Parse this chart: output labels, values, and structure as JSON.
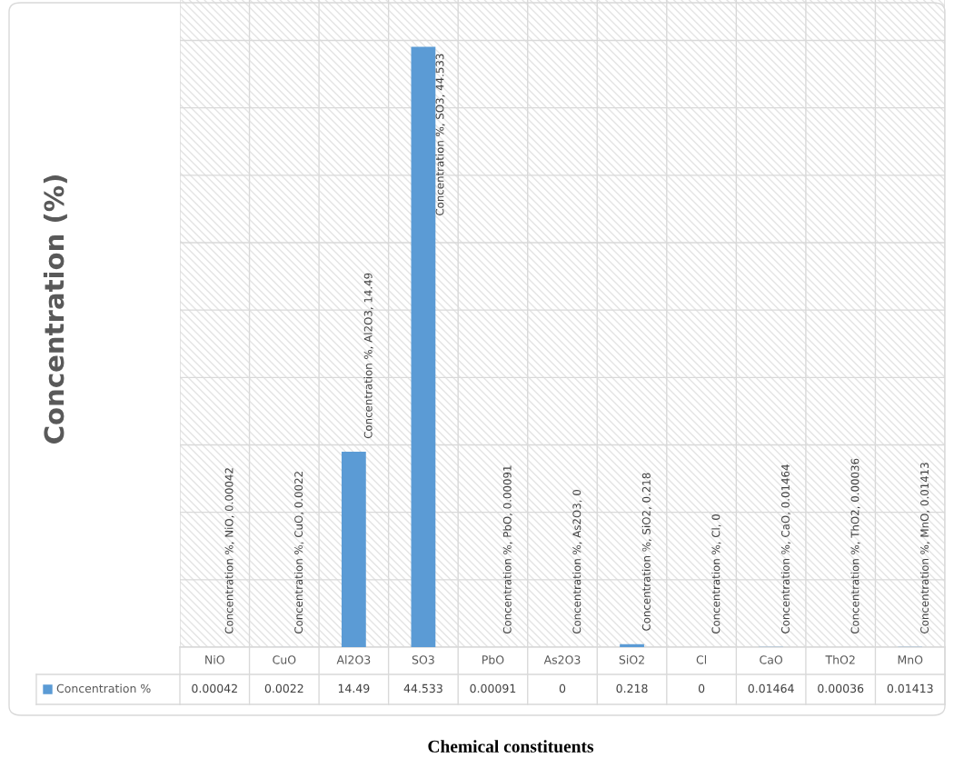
{
  "chart_data": {
    "type": "bar",
    "ylabel": "Concentration (%)",
    "xlabel": "Chemical constituents",
    "categories": [
      "NiO",
      "CuO",
      "Al2O3",
      "SO3",
      "PbO",
      "As2O3",
      "SiO2",
      "Cl",
      "CaO",
      "ThO2",
      "MnO"
    ],
    "series": [
      {
        "name": "Concentration %",
        "color": "#5b9bd5",
        "values": [
          0.00042,
          0.0022,
          14.49,
          44.533,
          0.00091,
          0,
          0.218,
          0,
          0.01464,
          0.00036,
          0.01413
        ]
      }
    ],
    "annotations": [
      {
        "text": "Concentration %, NiO, 0.00042",
        "x": "NiO",
        "y": 0.00042
      },
      {
        "text": "Concentration %, CuO, 0.0022",
        "x": "CuO",
        "y": 0.0022
      },
      {
        "text": "Concentration %, Al2O3, 14.49",
        "x": "Al2O3",
        "y": 14.49
      },
      {
        "text": "Concentration %, SO3, 44.533",
        "x": "SO3",
        "y": 44.533
      },
      {
        "text": "Concentration %, PbO, 0.00091",
        "x": "PbO",
        "y": 0.00091
      },
      {
        "text": "Concentration %, As2O3, 0",
        "x": "As2O3",
        "y": 0
      },
      {
        "text": "Concentration %, SiO2, 0.218",
        "x": "SiO2",
        "y": 0.218
      },
      {
        "text": "Concentration %, Cl, 0",
        "x": "Cl",
        "y": 0
      },
      {
        "text": "Concentration %, CaO, 0.01464",
        "x": "CaO",
        "y": 0.01464
      },
      {
        "text": "Concentration %, ThO2, 0.00036",
        "x": "ThO2",
        "y": 0.00036
      },
      {
        "text": "Concentration %, MnO, 0.01413",
        "x": "MnO",
        "y": 0.01413
      }
    ],
    "data_labels": true,
    "ylim": [
      0,
      48
    ],
    "yticks": [
      {
        "value": 0,
        "label": null
      },
      {
        "value": 5,
        "label": null
      },
      {
        "value": 10,
        "label": null
      },
      {
        "value": 15,
        "label": null
      },
      {
        "value": 20,
        "label": null
      },
      {
        "value": 25,
        "label": null
      },
      {
        "value": 30,
        "label": null
      },
      {
        "value": 35,
        "label": null
      },
      {
        "value": 40,
        "label": null
      },
      {
        "value": 45,
        "label": null
      }
    ],
    "tick_labels": "x",
    "grid": true,
    "legend": "bottom left"
  }
}
